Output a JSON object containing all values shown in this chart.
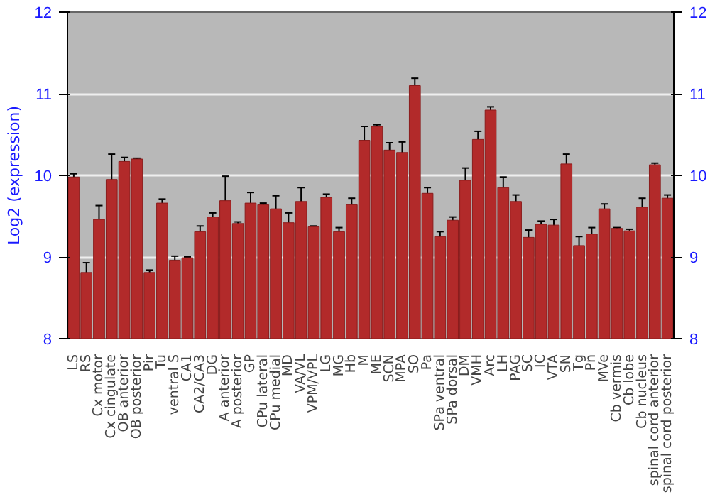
{
  "chart_data": {
    "type": "bar",
    "ylabel": "Log2 (expression)",
    "categories": [
      "LS",
      "RS",
      "Cx motor",
      "Cx cingulate",
      "OB anterior",
      "OB posterior",
      "Pir",
      "Tu",
      "ventral S",
      "CA1",
      "CA2/CA3",
      "DG",
      "A anterior",
      "A posterior",
      "GP",
      "CPu lateral",
      "CPu medial",
      "MD",
      "VA/VL",
      "VPM/VPL",
      "LG",
      "MG",
      "Hb",
      "M",
      "ME",
      "SCN",
      "MPA",
      "SO",
      "Pa",
      "SPa ventral",
      "SPa dorsal",
      "DM",
      "VMH",
      "Arc",
      "LH",
      "PAG",
      "SC",
      "IC",
      "VTA",
      "SN",
      "Tg",
      "Pn",
      "MVe",
      "Cb vermis",
      "Cb lobe",
      "Cb nucleus",
      "spinal cord anterior",
      "spinal cord posterior"
    ],
    "values": [
      9.98,
      8.81,
      9.46,
      9.95,
      10.17,
      10.2,
      8.81,
      9.66,
      8.96,
      8.99,
      9.31,
      9.49,
      9.69,
      9.41,
      9.66,
      9.64,
      9.59,
      9.42,
      9.68,
      9.37,
      9.73,
      9.31,
      9.64,
      10.43,
      10.6,
      10.31,
      10.28,
      11.1,
      9.78,
      9.25,
      9.45,
      9.94,
      10.44,
      10.8,
      9.85,
      9.68,
      9.24,
      9.4,
      9.39,
      10.14,
      9.14,
      9.28,
      9.59,
      9.35,
      9.32,
      9.61,
      10.13,
      9.72
    ],
    "errors": [
      0.04,
      0.12,
      0.17,
      0.31,
      0.05,
      0.01,
      0.03,
      0.05,
      0.05,
      0.01,
      0.07,
      0.05,
      0.3,
      0.02,
      0.13,
      0.02,
      0.16,
      0.12,
      0.17,
      0.01,
      0.04,
      0.05,
      0.08,
      0.17,
      0.02,
      0.09,
      0.13,
      0.09,
      0.07,
      0.06,
      0.04,
      0.15,
      0.1,
      0.04,
      0.13,
      0.08,
      0.09,
      0.04,
      0.07,
      0.12,
      0.11,
      0.08,
      0.06,
      0.01,
      0.02,
      0.11,
      0.02,
      0.04
    ],
    "color": "#b22a2a",
    "ylim": [
      8,
      12
    ],
    "yticks": [
      8,
      9,
      10,
      11,
      12
    ],
    "y2lim": [
      8,
      12
    ],
    "y2ticks": [
      8,
      9,
      10,
      11,
      12
    ],
    "grid": "y"
  }
}
